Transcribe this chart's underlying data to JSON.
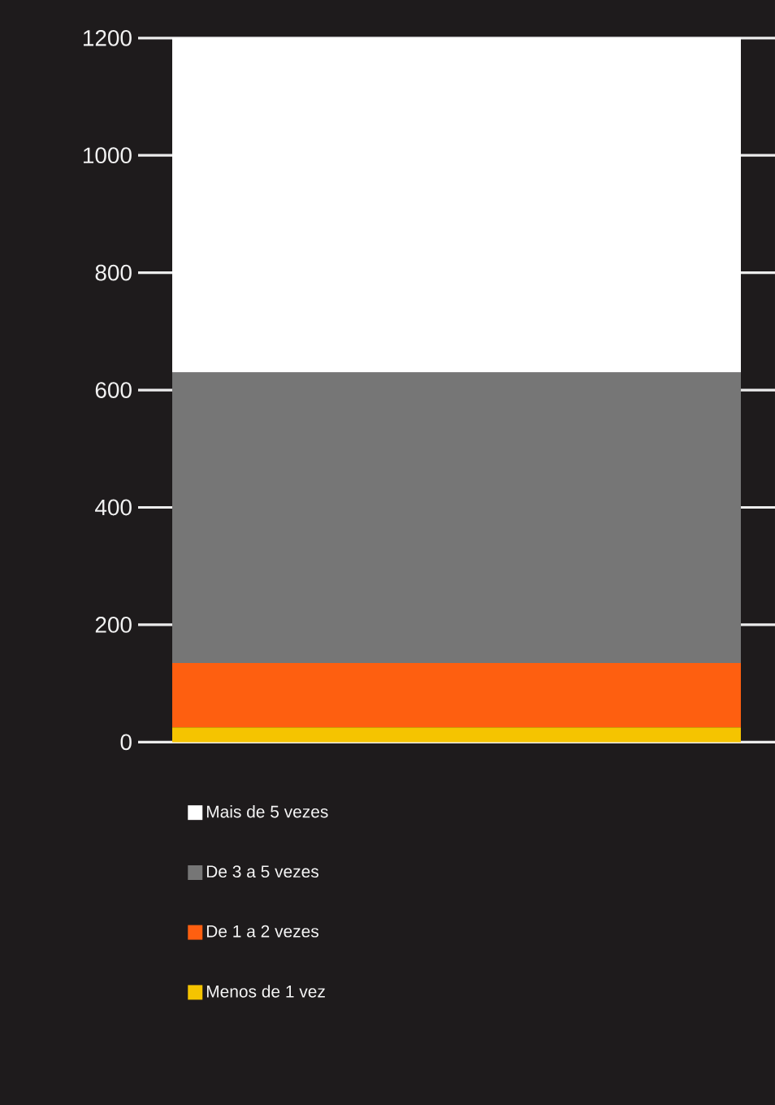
{
  "chart_data": {
    "type": "bar",
    "stacked": true,
    "categories": [
      null
    ],
    "series": [
      {
        "name": "Menos de 1 vez",
        "color": "#f5c400",
        "values": [
          25
        ]
      },
      {
        "name": "De 1 a 2 vezes",
        "color": "#fe5f10",
        "values": [
          110
        ]
      },
      {
        "name": "De 3 a 5 vezes",
        "color": "#767676",
        "values": [
          495
        ]
      },
      {
        "name": "Mais de 5 vezes",
        "color": "#ffffff",
        "values": [
          570
        ]
      }
    ],
    "ylim": [
      0,
      1200
    ],
    "yticks": [
      0,
      200,
      400,
      600,
      800,
      1000,
      1200
    ],
    "grid": "y",
    "legend": "bottom",
    "tick_labels": "y"
  }
}
